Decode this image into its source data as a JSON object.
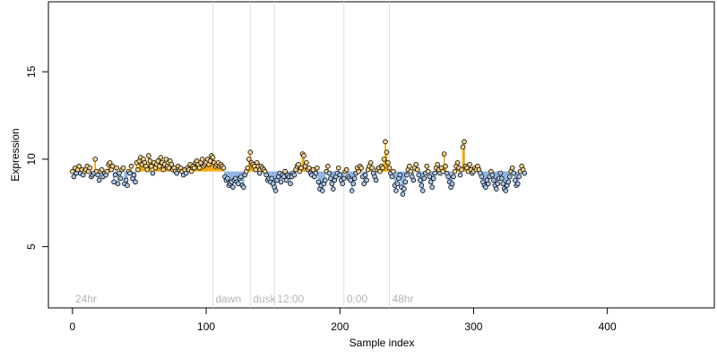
{
  "chart_data": {
    "type": "scatter",
    "xlabel": "Sample index",
    "ylabel": "Expression",
    "xlim": [
      -18,
      480
    ],
    "ylim": [
      1.5,
      19
    ],
    "x_ticks": [
      0,
      100,
      200,
      300,
      400
    ],
    "y_ticks": [
      5,
      10,
      15
    ],
    "baseline": 9.3,
    "grid": false,
    "condition_markers": [
      {
        "x": 105,
        "label": "dawn"
      },
      {
        "x": 133,
        "label": "dusk"
      },
      {
        "x": 151,
        "label": "12:00"
      },
      {
        "x": 203,
        "label": "0:00"
      },
      {
        "x": 237,
        "label": "48hr"
      }
    ],
    "corner_label": "24hr",
    "series": [
      {
        "values": [
          9.3,
          9.0,
          9.5,
          9.2,
          9.4,
          9.6,
          9.2,
          9.4,
          9.1,
          9.3,
          9.4,
          9.6,
          9.3,
          9.5,
          9.0,
          9.1,
          9.2,
          10.0,
          9.3,
          9.1,
          8.8,
          9.3,
          9.4,
          9.0,
          9.2,
          9.1,
          9.3,
          9.7,
          9.8,
          9.4,
          9.6,
          8.7,
          9.1,
          9.5,
          8.6,
          9.2,
          8.9,
          9.4,
          9.5,
          8.6,
          8.8,
          8.5,
          9.3,
          9.2,
          9.6,
          8.9,
          9.1,
          8.7,
          9.8,
          9.4,
          9.9,
          10.1,
          9.7,
          10.0,
          9.8,
          9.6,
          9.4,
          10.2,
          9.9,
          9.6,
          9.2,
          9.8,
          9.5,
          9.7,
          9.9,
          9.6,
          10.1,
          9.8,
          9.4,
          9.7,
          10.0,
          9.6,
          9.5,
          9.9,
          9.7,
          9.4,
          9.5,
          9.3,
          9.2,
          9.6,
          9.4,
          9.5,
          9.3,
          9.1,
          9.4,
          9.2,
          9.5,
          9.4,
          9.7,
          9.3,
          9.6,
          9.5,
          9.8,
          9.9,
          9.7,
          9.5,
          9.8,
          10.0,
          9.6,
          9.7,
          9.8,
          10.0,
          9.7,
          9.9,
          10.2,
          10.1,
          9.8,
          9.6,
          9.7,
          9.8,
          9.6,
          9.7,
          9.6,
          9.5,
          9.0,
          8.8,
          8.9,
          8.5,
          8.6,
          8.7,
          8.4,
          8.8,
          8.9,
          8.7,
          8.6,
          8.9,
          9.0,
          8.5,
          8.4,
          9.1,
          9.3,
          9.5,
          10.0,
          10.4,
          9.8,
          9.7,
          9.6,
          9.4,
          9.8,
          9.6,
          9.2,
          9.6,
          9.5,
          9.4,
          9.3,
          9.1,
          8.8,
          8.9,
          8.7,
          8.9,
          8.6,
          8.4,
          8.2,
          8.8,
          9.0,
          9.2,
          8.7,
          9.1,
          9.0,
          9.3,
          8.8,
          9.1,
          9.0,
          8.6,
          9.0,
          9.2,
          9.1,
          9.4,
          9.6,
          9.7,
          9.3,
          9.5,
          10.3,
          10.2,
          9.6,
          9.8,
          9.4,
          9.5,
          9.2,
          9.1,
          9.4,
          9.0,
          9.2,
          9.5,
          8.7,
          8.3,
          8.5,
          8.2,
          8.6,
          8.8,
          9.3,
          9.6,
          9.2,
          8.9,
          8.6,
          8.3,
          8.8,
          9.0,
          9.2,
          9.5,
          9.1,
          8.8,
          8.6,
          8.9,
          9.3,
          9.4,
          9.0,
          8.9,
          8.8,
          8.2,
          8.6,
          8.9,
          9.2,
          9.5,
          9.3,
          9.6,
          9.5,
          9.0,
          8.6,
          9.1,
          8.8,
          9.4,
          9.6,
          9.8,
          9.5,
          9.2,
          9.0,
          8.8,
          9.4,
          9.5,
          9.3,
          9.6,
          9.5,
          10.0,
          11.0,
          10.4,
          9.8,
          9.5,
          9.2,
          9.0,
          9.3,
          8.5,
          8.2,
          8.6,
          8.9,
          9.1,
          8.4,
          8.0,
          8.3,
          8.7,
          9.1,
          9.4,
          9.6,
          9.3,
          9.0,
          8.8,
          9.5,
          9.7,
          9.4,
          9.1,
          8.8,
          8.5,
          8.2,
          8.9,
          9.2,
          9.6,
          9.3,
          9.0,
          8.7,
          8.4,
          8.9,
          9.2,
          9.5,
          9.7,
          9.4,
          9.2,
          9.5,
          9.3,
          10.3,
          9.6,
          9.2,
          9.0,
          8.7,
          8.4,
          8.6,
          9.0,
          9.3,
          9.6,
          9.8,
          9.5,
          9.1,
          9.4,
          10.7,
          11.0,
          9.6,
          9.5,
          9.3,
          9.7,
          9.4,
          9.2,
          9.3,
          9.5,
          9.4,
          9.6,
          9.4,
          9.2,
          9.0,
          8.7,
          8.5,
          8.4,
          8.8,
          8.6,
          9.0,
          9.3,
          9.1,
          8.8,
          8.5,
          8.3,
          8.6,
          8.9,
          9.2,
          8.9,
          8.6,
          8.3,
          8.2,
          8.5,
          8.7,
          9.0,
          9.3,
          9.5,
          9.2,
          8.8,
          8.5,
          8.6,
          9.0,
          9.3,
          9.6,
          9.4,
          9.2
        ]
      }
    ]
  }
}
